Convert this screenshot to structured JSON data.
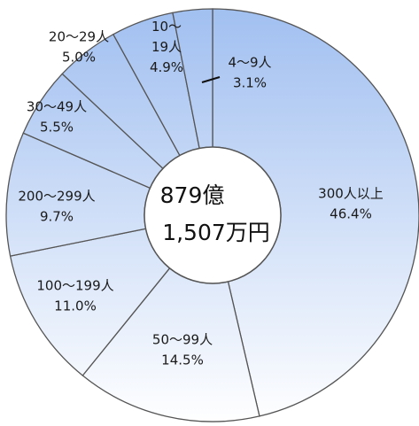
{
  "chart_data": {
    "type": "pie",
    "style": "donut",
    "center_label": [
      "879億",
      "1,507万円"
    ],
    "slices": [
      {
        "label": "300人以上",
        "value": 46.4,
        "value_text": "46.4%"
      },
      {
        "label": "50〜99人",
        "value": 14.5,
        "value_text": "14.5%"
      },
      {
        "label": "100〜199人",
        "value": 11.0,
        "value_text": "11.0%"
      },
      {
        "label": "200〜299人",
        "value": 9.7,
        "value_text": "9.7%"
      },
      {
        "label": "30〜49人",
        "value": 5.5,
        "value_text": "5.5%"
      },
      {
        "label": "20〜29人",
        "value": 5.0,
        "value_text": "5.0%"
      },
      {
        "label": "10〜19人",
        "label_lines": [
          "10〜",
          "19人"
        ],
        "value": 4.9,
        "value_text": "4.9%"
      },
      {
        "label": "4〜9人",
        "value": 3.1,
        "value_text": "3.1%"
      }
    ],
    "colors": {
      "fill_light": "#ffffff",
      "fill_dark": "#9fbef0",
      "stroke": "#555555"
    }
  }
}
